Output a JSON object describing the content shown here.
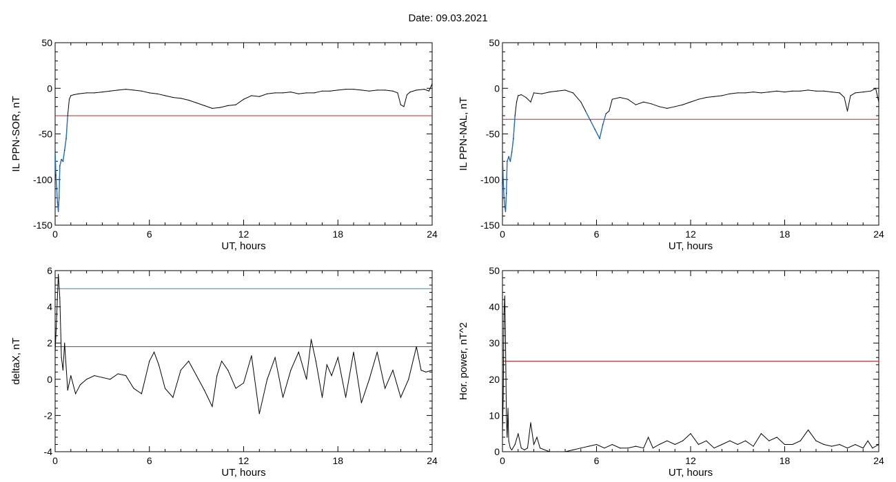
{
  "page": {
    "title": "Date:  09.03.2021"
  },
  "colors": {
    "trace": "#000000",
    "highlight": "#1f6fd0",
    "threshold_red": "#cc2222",
    "threshold_cyan": "#2a8fa8",
    "marker_green": "#5bbf3a"
  },
  "chart_data": [
    {
      "type": "line",
      "xlabel": "UT, hours",
      "ylabel": "IL PPN-SOR, nT",
      "xlim": [
        0,
        24
      ],
      "ylim": [
        -150,
        50
      ],
      "xticks": [
        0,
        6,
        12,
        18,
        24
      ],
      "yticks": [
        -150,
        -100,
        -50,
        0,
        50
      ],
      "threshold": -30,
      "highlight_below_threshold": true,
      "series": [
        {
          "x": [
            0,
            0.05,
            0.1,
            0.15,
            0.2,
            0.25,
            0.3,
            0.4,
            0.5,
            0.6,
            0.7,
            0.8,
            0.9,
            1.0,
            1.2,
            1.5,
            2.0,
            2.5,
            3.0,
            3.5,
            4.0,
            4.5,
            5.0,
            5.5,
            6.0,
            6.5,
            7.0,
            7.5,
            8.0,
            8.5,
            9.0,
            9.5,
            10.0,
            10.5,
            11.0,
            11.5,
            12.0,
            12.5,
            13.0,
            13.5,
            14.0,
            14.5,
            15.0,
            15.5,
            16.0,
            16.5,
            17.0,
            17.5,
            18.0,
            18.5,
            19.0,
            19.5,
            20.0,
            20.5,
            21.0,
            21.5,
            21.8,
            22.0,
            22.2,
            22.4,
            22.6,
            23.0,
            23.5,
            23.8,
            24.0
          ],
          "values": [
            -70,
            -95,
            -110,
            -125,
            -135,
            -120,
            -85,
            -78,
            -80,
            -68,
            -55,
            -30,
            -12,
            -8,
            -7,
            -6,
            -5,
            -5,
            -4,
            -3,
            -2,
            -1,
            -2,
            -3,
            -5,
            -6,
            -8,
            -10,
            -11,
            -13,
            -16,
            -19,
            -22,
            -21,
            -19,
            -18,
            -12,
            -8,
            -9,
            -6,
            -5,
            -5,
            -4,
            -6,
            -5,
            -5,
            -3,
            -3,
            -2,
            -1,
            -1,
            -2,
            -3,
            -2,
            -2,
            -3,
            -5,
            -18,
            -20,
            -7,
            -4,
            -2,
            -1,
            -3,
            5
          ]
        }
      ]
    },
    {
      "type": "line",
      "xlabel": "UT, hours",
      "ylabel": "IL PPN-NAL, nT",
      "xlim": [
        0,
        24
      ],
      "ylim": [
        -150,
        50
      ],
      "xticks": [
        0,
        6,
        12,
        18,
        24
      ],
      "yticks": [
        -150,
        -100,
        -50,
        0,
        50
      ],
      "threshold": -34,
      "highlight_below_threshold": true,
      "series": [
        {
          "x": [
            0,
            0.05,
            0.1,
            0.15,
            0.2,
            0.25,
            0.3,
            0.4,
            0.5,
            0.6,
            0.7,
            0.8,
            0.9,
            1.0,
            1.2,
            1.5,
            1.8,
            2.0,
            2.5,
            3.0,
            3.5,
            4.0,
            4.5,
            5.0,
            5.3,
            5.6,
            5.9,
            6.2,
            6.4,
            6.6,
            6.8,
            7.0,
            7.5,
            8.0,
            8.5,
            9.0,
            9.5,
            10.0,
            10.5,
            11.0,
            11.5,
            12.0,
            12.5,
            13.0,
            13.5,
            14.0,
            14.5,
            15.0,
            15.5,
            16.0,
            16.5,
            17.0,
            17.5,
            18.0,
            18.5,
            19.0,
            19.5,
            20.0,
            20.5,
            21.0,
            21.5,
            21.8,
            22.0,
            22.2,
            22.5,
            23.0,
            23.5,
            23.8,
            24.0
          ],
          "values": [
            -70,
            -100,
            -120,
            -130,
            -135,
            -115,
            -80,
            -75,
            -80,
            -70,
            -55,
            -30,
            -15,
            -8,
            -7,
            -10,
            -15,
            -5,
            -6,
            -4,
            -3,
            -2,
            -5,
            -15,
            -25,
            -35,
            -45,
            -55,
            -40,
            -28,
            -25,
            -12,
            -10,
            -12,
            -18,
            -15,
            -17,
            -20,
            -22,
            -20,
            -18,
            -15,
            -12,
            -10,
            -9,
            -8,
            -6,
            -5,
            -5,
            -4,
            -5,
            -4,
            -3,
            -4,
            -3,
            -3,
            -2,
            -3,
            -3,
            -4,
            -5,
            -10,
            -25,
            -8,
            -5,
            -4,
            -3,
            0,
            -15
          ]
        }
      ]
    },
    {
      "type": "line",
      "xlabel": "UT, hours",
      "ylabel": "deltaX, nT",
      "xlim": [
        0,
        24
      ],
      "ylim": [
        -4,
        6
      ],
      "xticks": [
        0,
        6,
        12,
        18,
        24
      ],
      "yticks": [
        -4,
        -2,
        0,
        2,
        4,
        6
      ],
      "thresholds": [
        5.0,
        1.8
      ],
      "series": [
        {
          "x": [
            0,
            0.1,
            0.2,
            0.3,
            0.4,
            0.5,
            0.6,
            0.8,
            1.0,
            1.3,
            1.6,
            2.0,
            2.5,
            3.0,
            3.5,
            4.0,
            4.5,
            5.0,
            5.5,
            6.0,
            6.3,
            6.6,
            7.0,
            7.5,
            8.0,
            8.5,
            9.0,
            9.5,
            10.0,
            10.3,
            10.6,
            11.0,
            11.5,
            12.0,
            12.5,
            13.0,
            13.5,
            14.0,
            14.5,
            15.0,
            15.5,
            16.0,
            16.3,
            16.6,
            17.0,
            17.3,
            17.6,
            18.0,
            18.5,
            19.0,
            19.5,
            20.0,
            20.5,
            21.0,
            21.5,
            22.0,
            22.5,
            23.0,
            23.3,
            23.6,
            24.0
          ],
          "values": [
            1.5,
            3.5,
            5.8,
            4.5,
            1.2,
            0.5,
            2.0,
            -0.6,
            0.2,
            -0.8,
            -0.3,
            0.0,
            0.2,
            0.1,
            0.0,
            0.3,
            0.2,
            -0.5,
            -0.8,
            1.0,
            1.5,
            0.8,
            -0.5,
            -1.0,
            0.5,
            1.0,
            0.2,
            -0.6,
            -1.5,
            0.2,
            1.0,
            0.5,
            -0.5,
            -0.2,
            1.3,
            -1.9,
            0.0,
            1.2,
            -1.0,
            0.5,
            1.5,
            0.0,
            2.2,
            1.0,
            -1.0,
            0.8,
            0.2,
            1.2,
            -1.0,
            1.5,
            -1.3,
            0.0,
            1.5,
            -0.5,
            0.5,
            -1.0,
            0.0,
            1.8,
            0.5,
            0.4,
            0.5
          ]
        }
      ]
    },
    {
      "type": "line",
      "xlabel": "UT, hours",
      "ylabel": "Hor. power, nT^2",
      "xlim": [
        0,
        24
      ],
      "ylim": [
        0,
        50
      ],
      "xticks": [
        0,
        6,
        12,
        18,
        24
      ],
      "yticks": [
        0,
        10,
        20,
        30,
        40,
        50
      ],
      "threshold": 25,
      "series": [
        {
          "x": [
            0,
            0.05,
            0.1,
            0.15,
            0.2,
            0.25,
            0.3,
            0.35,
            0.4,
            0.5,
            0.6,
            0.8,
            1.0,
            1.2,
            1.4,
            1.6,
            1.8,
            2.0,
            2.2,
            2.4,
            3.0,
            3.5,
            4.0,
            4.5,
            5.0,
            5.5,
            6.0,
            6.5,
            7.0,
            7.5,
            8.0,
            8.5,
            9.0,
            9.3,
            9.6,
            10.0,
            10.5,
            11.0,
            11.5,
            12.0,
            12.5,
            13.0,
            13.5,
            14.0,
            14.5,
            15.0,
            15.5,
            16.0,
            16.5,
            17.0,
            17.5,
            18.0,
            18.5,
            19.0,
            19.5,
            20.0,
            20.5,
            21.0,
            21.5,
            22.0,
            22.5,
            23.0,
            23.3,
            23.6,
            24.0
          ],
          "values": [
            5,
            15,
            38,
            43,
            30,
            10,
            4,
            12,
            3,
            1,
            0.5,
            2,
            5,
            1,
            0.5,
            1,
            8,
            2,
            4,
            1,
            0,
            0,
            0,
            0.5,
            1,
            1.5,
            2,
            1,
            2,
            1,
            1,
            1.5,
            1,
            4,
            1,
            2,
            3,
            2,
            3,
            5,
            2,
            3,
            1,
            2,
            3,
            2,
            3,
            1.5,
            5,
            3,
            4,
            2,
            2,
            3,
            6,
            3,
            2,
            1.5,
            2,
            1,
            2,
            1,
            3,
            1,
            2
          ]
        }
      ]
    }
  ]
}
